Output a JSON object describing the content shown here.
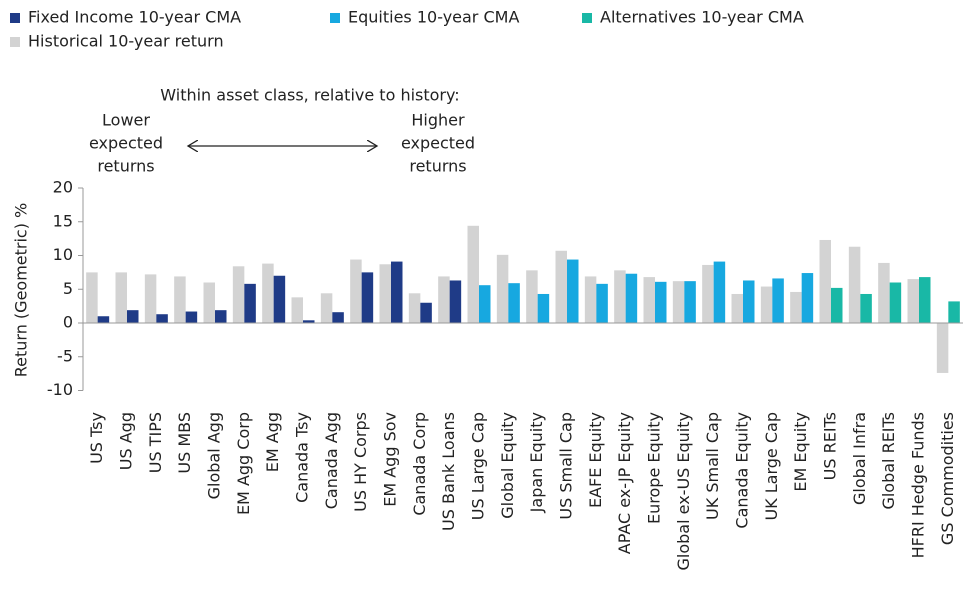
{
  "chart_data": {
    "type": "bar",
    "y_label": "Return (Geometric) %",
    "annotations": {
      "heading": "Within asset class, relative to history:",
      "lower": [
        "Lower",
        "expected",
        "returns"
      ],
      "higher": [
        "Higher",
        "expected",
        "returns"
      ]
    },
    "categories": [
      "US Tsy",
      "US Agg",
      "US TIPS",
      "US MBS",
      "Global Agg",
      "EM Agg Corp",
      "EM Agg",
      "Canada Tsy",
      "Canada Agg",
      "US HY Corps",
      "EM Agg Sov",
      "Canada Corp",
      "US Bank Loans",
      "US Large Cap",
      "Global Equity",
      "Japan Equity",
      "US Small Cap",
      "EAFE Equity",
      "APAC ex-JP Equity",
      "Europe Equity",
      "Global ex-US Equity",
      "UK Small Cap",
      "Canada Equity",
      "UK Large Cap",
      "EM Equity",
      "US REITs",
      "Global Infra",
      "Global REITs",
      "HFRI Hedge Funds",
      "GS Commodities"
    ],
    "series": [
      {
        "name": "Fixed Income 10-year CMA",
        "color": "#1f3b87",
        "values": [
          1.0,
          1.9,
          1.3,
          1.7,
          1.9,
          5.8,
          7.0,
          0.4,
          1.6,
          7.5,
          9.1,
          3.0,
          6.3,
          null,
          null,
          null,
          null,
          null,
          null,
          null,
          null,
          null,
          null,
          null,
          null,
          null,
          null,
          null,
          null,
          null
        ]
      },
      {
        "name": "Equities 10-year CMA",
        "color": "#17a8e0",
        "values": [
          null,
          null,
          null,
          null,
          null,
          null,
          null,
          null,
          null,
          null,
          null,
          null,
          null,
          5.6,
          5.9,
          4.3,
          9.4,
          5.8,
          7.3,
          6.1,
          6.2,
          9.1,
          6.3,
          6.6,
          7.4,
          null,
          null,
          null,
          null,
          null
        ]
      },
      {
        "name": "Alternatives 10-year CMA",
        "color": "#19b8a6",
        "values": [
          null,
          null,
          null,
          null,
          null,
          null,
          null,
          null,
          null,
          null,
          null,
          null,
          null,
          null,
          null,
          null,
          null,
          null,
          null,
          null,
          null,
          null,
          null,
          null,
          null,
          5.2,
          4.3,
          6.0,
          6.8,
          3.2
        ]
      },
      {
        "name": "Historical 10-year return",
        "color": "#d3d3d3",
        "values": [
          7.5,
          7.5,
          7.2,
          6.9,
          6.0,
          8.4,
          8.8,
          3.8,
          4.4,
          9.4,
          8.7,
          4.4,
          6.9,
          14.4,
          10.1,
          7.8,
          10.7,
          6.9,
          7.8,
          6.8,
          6.2,
          8.6,
          4.3,
          5.4,
          4.6,
          12.3,
          11.3,
          8.9,
          6.5,
          -7.4
        ]
      }
    ],
    "ylim": [
      -10,
      20
    ],
    "yticks": [
      20,
      15,
      10,
      5,
      0,
      -5,
      -10
    ],
    "grid": false
  }
}
